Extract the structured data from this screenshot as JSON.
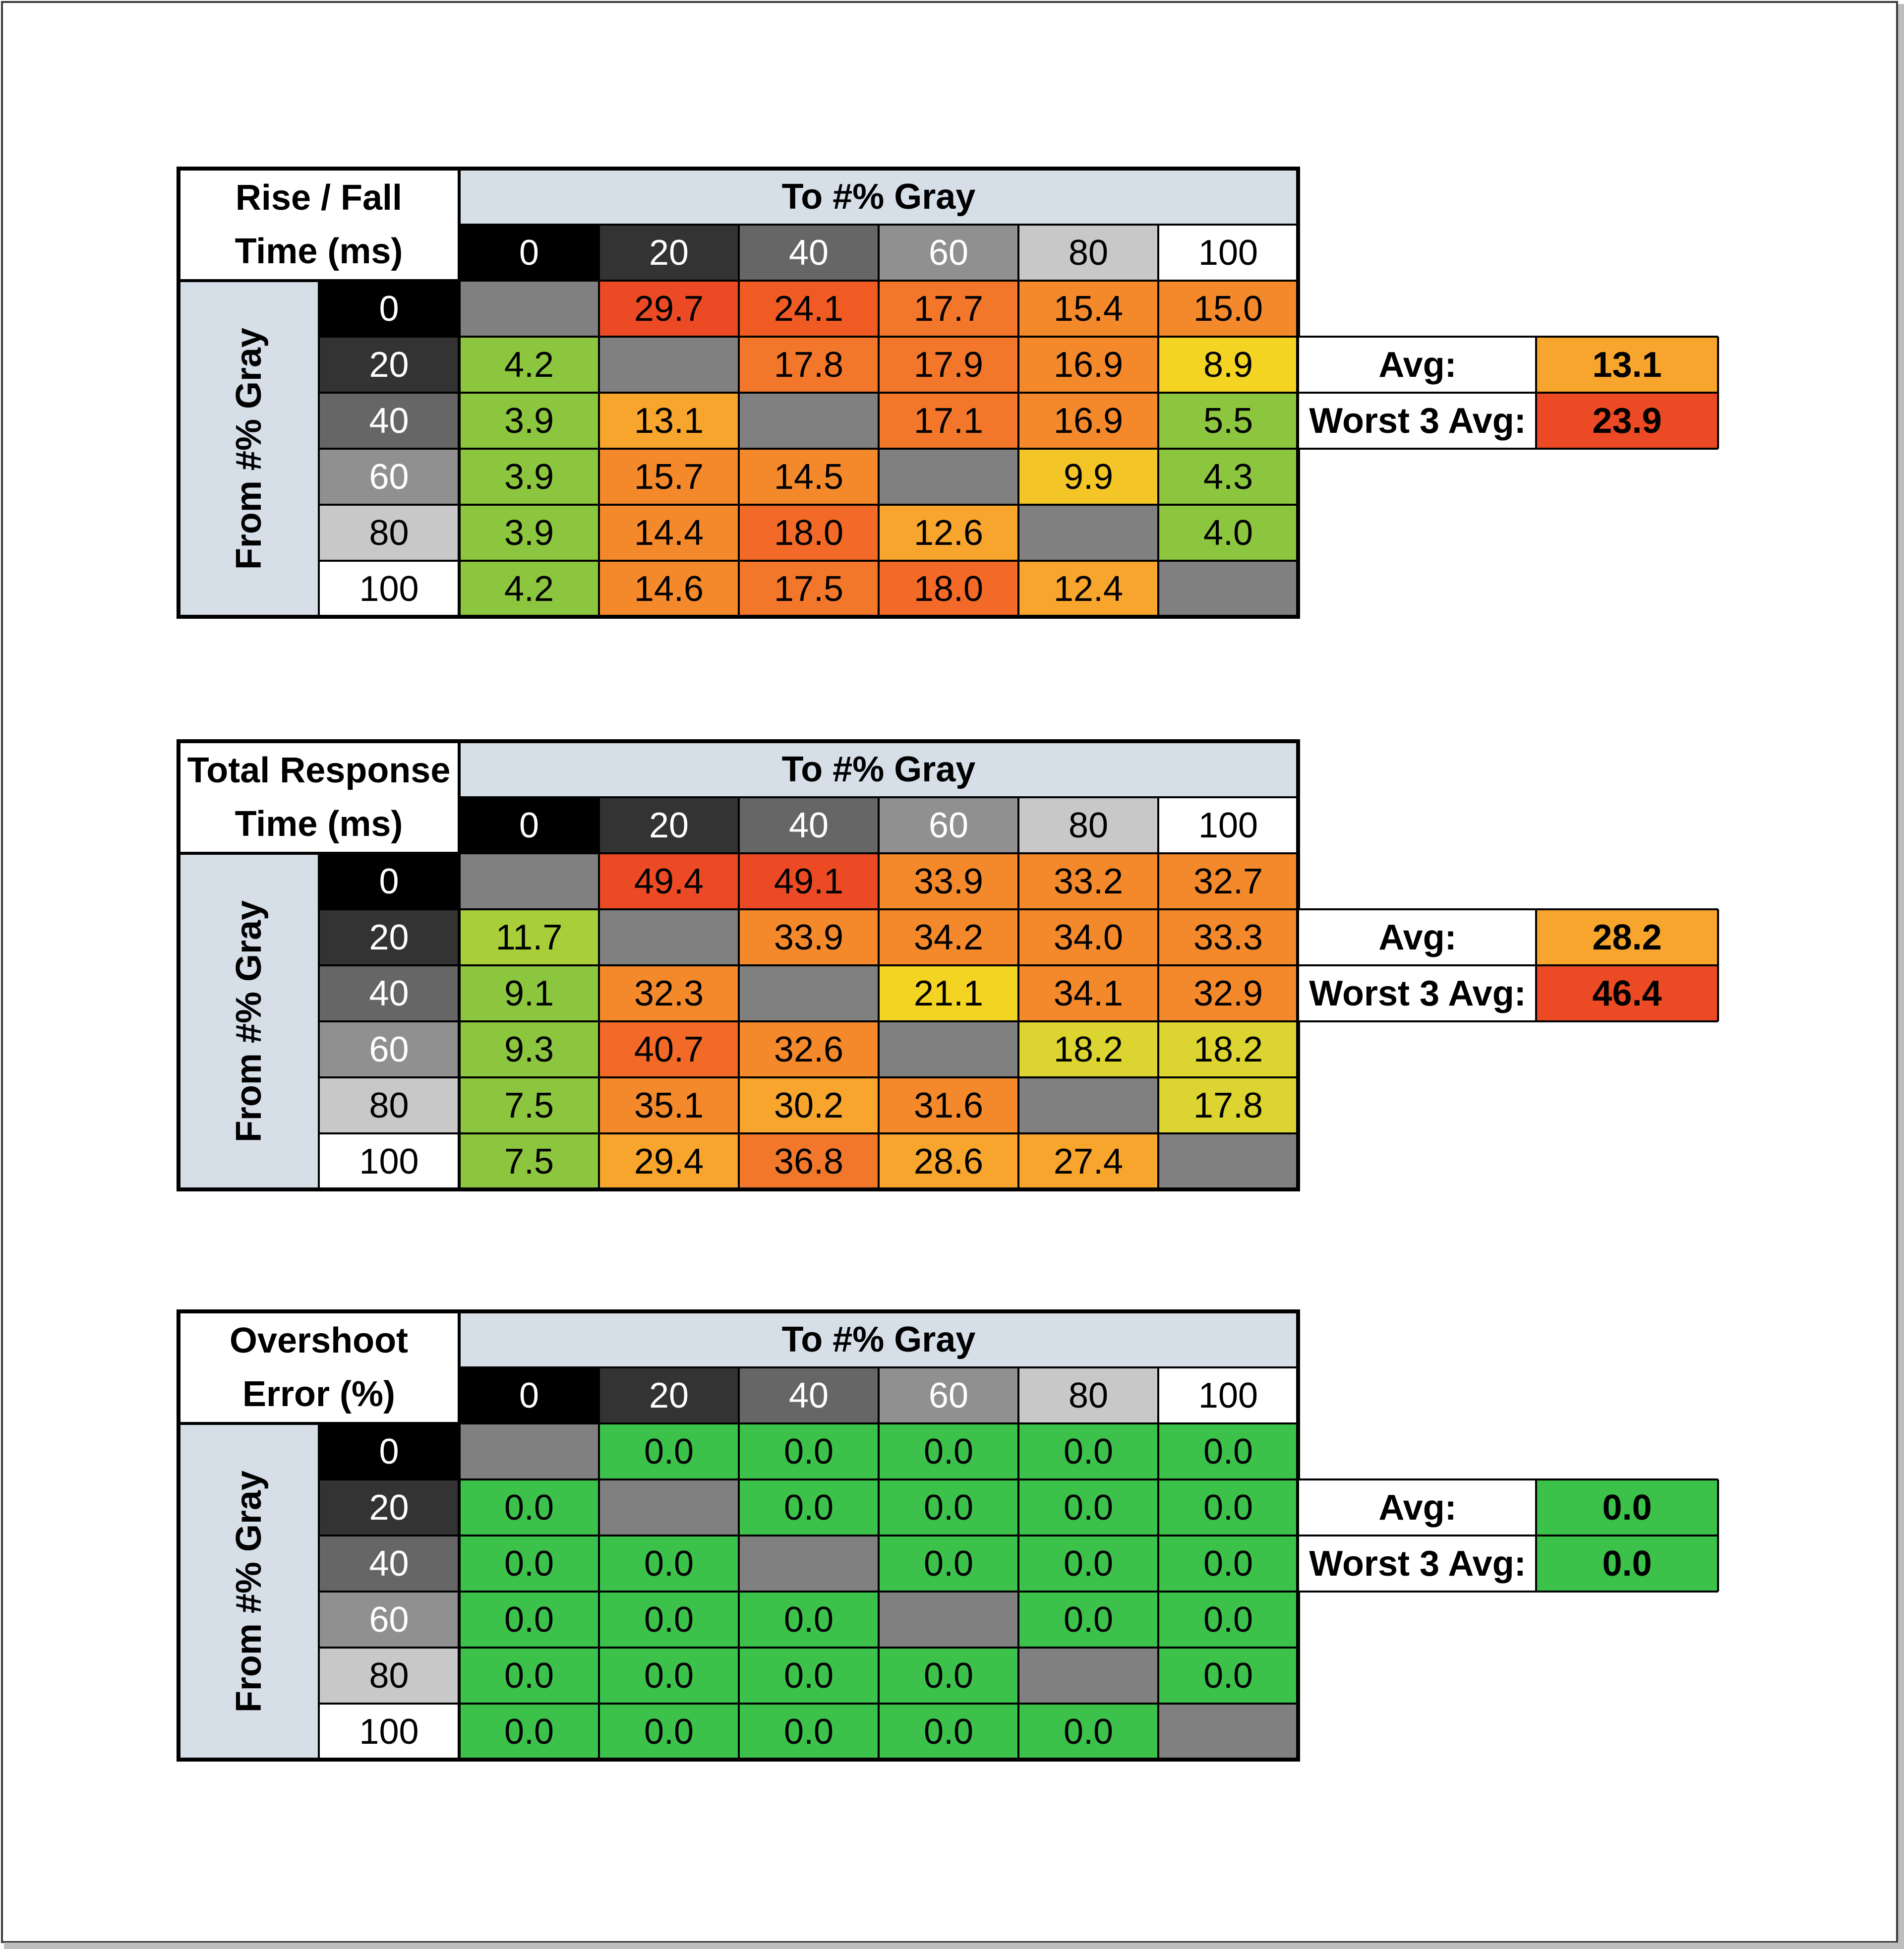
{
  "chart_data": [
    {
      "type": "heatmap",
      "title": "Rise / Fall Time (ms)",
      "title_lines": [
        "Rise / Fall",
        "Time (ms)"
      ],
      "xlabel": "To #% Gray",
      "ylabel": "From #% Gray",
      "x_categories": [
        "0",
        "20",
        "40",
        "60",
        "80",
        "100"
      ],
      "y_categories": [
        "0",
        "20",
        "40",
        "60",
        "80",
        "100"
      ],
      "values": [
        [
          null,
          "29.7",
          "24.1",
          "17.7",
          "15.4",
          "15.0"
        ],
        [
          "4.2",
          null,
          "17.8",
          "17.9",
          "16.9",
          "8.9"
        ],
        [
          "3.9",
          "13.1",
          null,
          "17.1",
          "16.9",
          "5.5"
        ],
        [
          "3.9",
          "15.7",
          "14.5",
          null,
          "9.9",
          "4.3"
        ],
        [
          "3.9",
          "14.4",
          "18.0",
          "12.6",
          null,
          "4.0"
        ],
        [
          "4.2",
          "14.6",
          "17.5",
          "18.0",
          "12.4",
          null
        ]
      ],
      "colors": [
        [
          "#808080",
          "#ec4a24",
          "#f05b24",
          "#f2772a",
          "#f4892b",
          "#f4892b"
        ],
        [
          "#8cc63f",
          "#808080",
          "#f2772a",
          "#f2772a",
          "#f4892b",
          "#f4d423"
        ],
        [
          "#8cc63f",
          "#f7a52c",
          "#808080",
          "#f2772a",
          "#f4892b",
          "#8cc63f"
        ],
        [
          "#8cc63f",
          "#f4892b",
          "#f4892b",
          "#808080",
          "#f4c526",
          "#8cc63f"
        ],
        [
          "#8cc63f",
          "#f4892b",
          "#f26928",
          "#f7a52c",
          "#808080",
          "#8cc63f"
        ],
        [
          "#8cc63f",
          "#f4892b",
          "#f2772a",
          "#f26928",
          "#f7a52c",
          "#808080"
        ]
      ],
      "summary": {
        "avg_label": "Avg:",
        "avg_value": "13.1",
        "avg_color": "#f7a52c",
        "worst_label": "Worst 3 Avg:",
        "worst_value": "23.9",
        "worst_color": "#ec4a24"
      }
    },
    {
      "type": "heatmap",
      "title": "Total Response Time (ms)",
      "title_lines": [
        "Total Response",
        "Time (ms)"
      ],
      "xlabel": "To #% Gray",
      "ylabel": "From #% Gray",
      "x_categories": [
        "0",
        "20",
        "40",
        "60",
        "80",
        "100"
      ],
      "y_categories": [
        "0",
        "20",
        "40",
        "60",
        "80",
        "100"
      ],
      "values": [
        [
          null,
          "49.4",
          "49.1",
          "33.9",
          "33.2",
          "32.7"
        ],
        [
          "11.7",
          null,
          "33.9",
          "34.2",
          "34.0",
          "33.3"
        ],
        [
          "9.1",
          "32.3",
          null,
          "21.1",
          "34.1",
          "32.9"
        ],
        [
          "9.3",
          "40.7",
          "32.6",
          null,
          "18.2",
          "18.2"
        ],
        [
          "7.5",
          "35.1",
          "30.2",
          "31.6",
          null,
          "17.8"
        ],
        [
          "7.5",
          "29.4",
          "36.8",
          "28.6",
          "27.4",
          null
        ]
      ],
      "colors": [
        [
          "#808080",
          "#ec4a24",
          "#ec4a24",
          "#f4892b",
          "#f4892b",
          "#f4892b"
        ],
        [
          "#a8cf3a",
          "#808080",
          "#f4892b",
          "#f4892b",
          "#f4892b",
          "#f4892b"
        ],
        [
          "#8cc63f",
          "#f4892b",
          "#808080",
          "#f4d423",
          "#f4892b",
          "#f4892b"
        ],
        [
          "#8cc63f",
          "#f26928",
          "#f4892b",
          "#808080",
          "#dcd431",
          "#dcd431"
        ],
        [
          "#8cc63f",
          "#f4892b",
          "#f7a52c",
          "#f4892b",
          "#808080",
          "#dcd431"
        ],
        [
          "#8cc63f",
          "#f7a52c",
          "#f2772a",
          "#f7a52c",
          "#f7a52c",
          "#808080"
        ]
      ],
      "summary": {
        "avg_label": "Avg:",
        "avg_value": "28.2",
        "avg_color": "#f7a52c",
        "worst_label": "Worst 3 Avg:",
        "worst_value": "46.4",
        "worst_color": "#ec4a24"
      }
    },
    {
      "type": "heatmap",
      "title": "Overshoot Error (%)",
      "title_lines": [
        "Overshoot",
        "Error (%)"
      ],
      "xlabel": "To #% Gray",
      "ylabel": "From #% Gray",
      "x_categories": [
        "0",
        "20",
        "40",
        "60",
        "80",
        "100"
      ],
      "y_categories": [
        "0",
        "20",
        "40",
        "60",
        "80",
        "100"
      ],
      "values": [
        [
          null,
          "0.0",
          "0.0",
          "0.0",
          "0.0",
          "0.0"
        ],
        [
          "0.0",
          null,
          "0.0",
          "0.0",
          "0.0",
          "0.0"
        ],
        [
          "0.0",
          "0.0",
          null,
          "0.0",
          "0.0",
          "0.0"
        ],
        [
          "0.0",
          "0.0",
          "0.0",
          null,
          "0.0",
          "0.0"
        ],
        [
          "0.0",
          "0.0",
          "0.0",
          "0.0",
          null,
          "0.0"
        ],
        [
          "0.0",
          "0.0",
          "0.0",
          "0.0",
          "0.0",
          null
        ]
      ],
      "colors": [
        [
          "#808080",
          "#3cc24a",
          "#3cc24a",
          "#3cc24a",
          "#3cc24a",
          "#3cc24a"
        ],
        [
          "#3cc24a",
          "#808080",
          "#3cc24a",
          "#3cc24a",
          "#3cc24a",
          "#3cc24a"
        ],
        [
          "#3cc24a",
          "#3cc24a",
          "#808080",
          "#3cc24a",
          "#3cc24a",
          "#3cc24a"
        ],
        [
          "#3cc24a",
          "#3cc24a",
          "#3cc24a",
          "#808080",
          "#3cc24a",
          "#3cc24a"
        ],
        [
          "#3cc24a",
          "#3cc24a",
          "#3cc24a",
          "#3cc24a",
          "#808080",
          "#3cc24a"
        ],
        [
          "#3cc24a",
          "#3cc24a",
          "#3cc24a",
          "#3cc24a",
          "#3cc24a",
          "#808080"
        ]
      ],
      "summary": {
        "avg_label": "Avg:",
        "avg_value": "0.0",
        "avg_color": "#3cc24a",
        "worst_label": "Worst 3 Avg:",
        "worst_value": "0.0",
        "worst_color": "#3cc24a"
      }
    }
  ],
  "gray_swatches": [
    "#000000",
    "#333333",
    "#666666",
    "#909090",
    "#c8c8c8",
    "#ffffff"
  ]
}
